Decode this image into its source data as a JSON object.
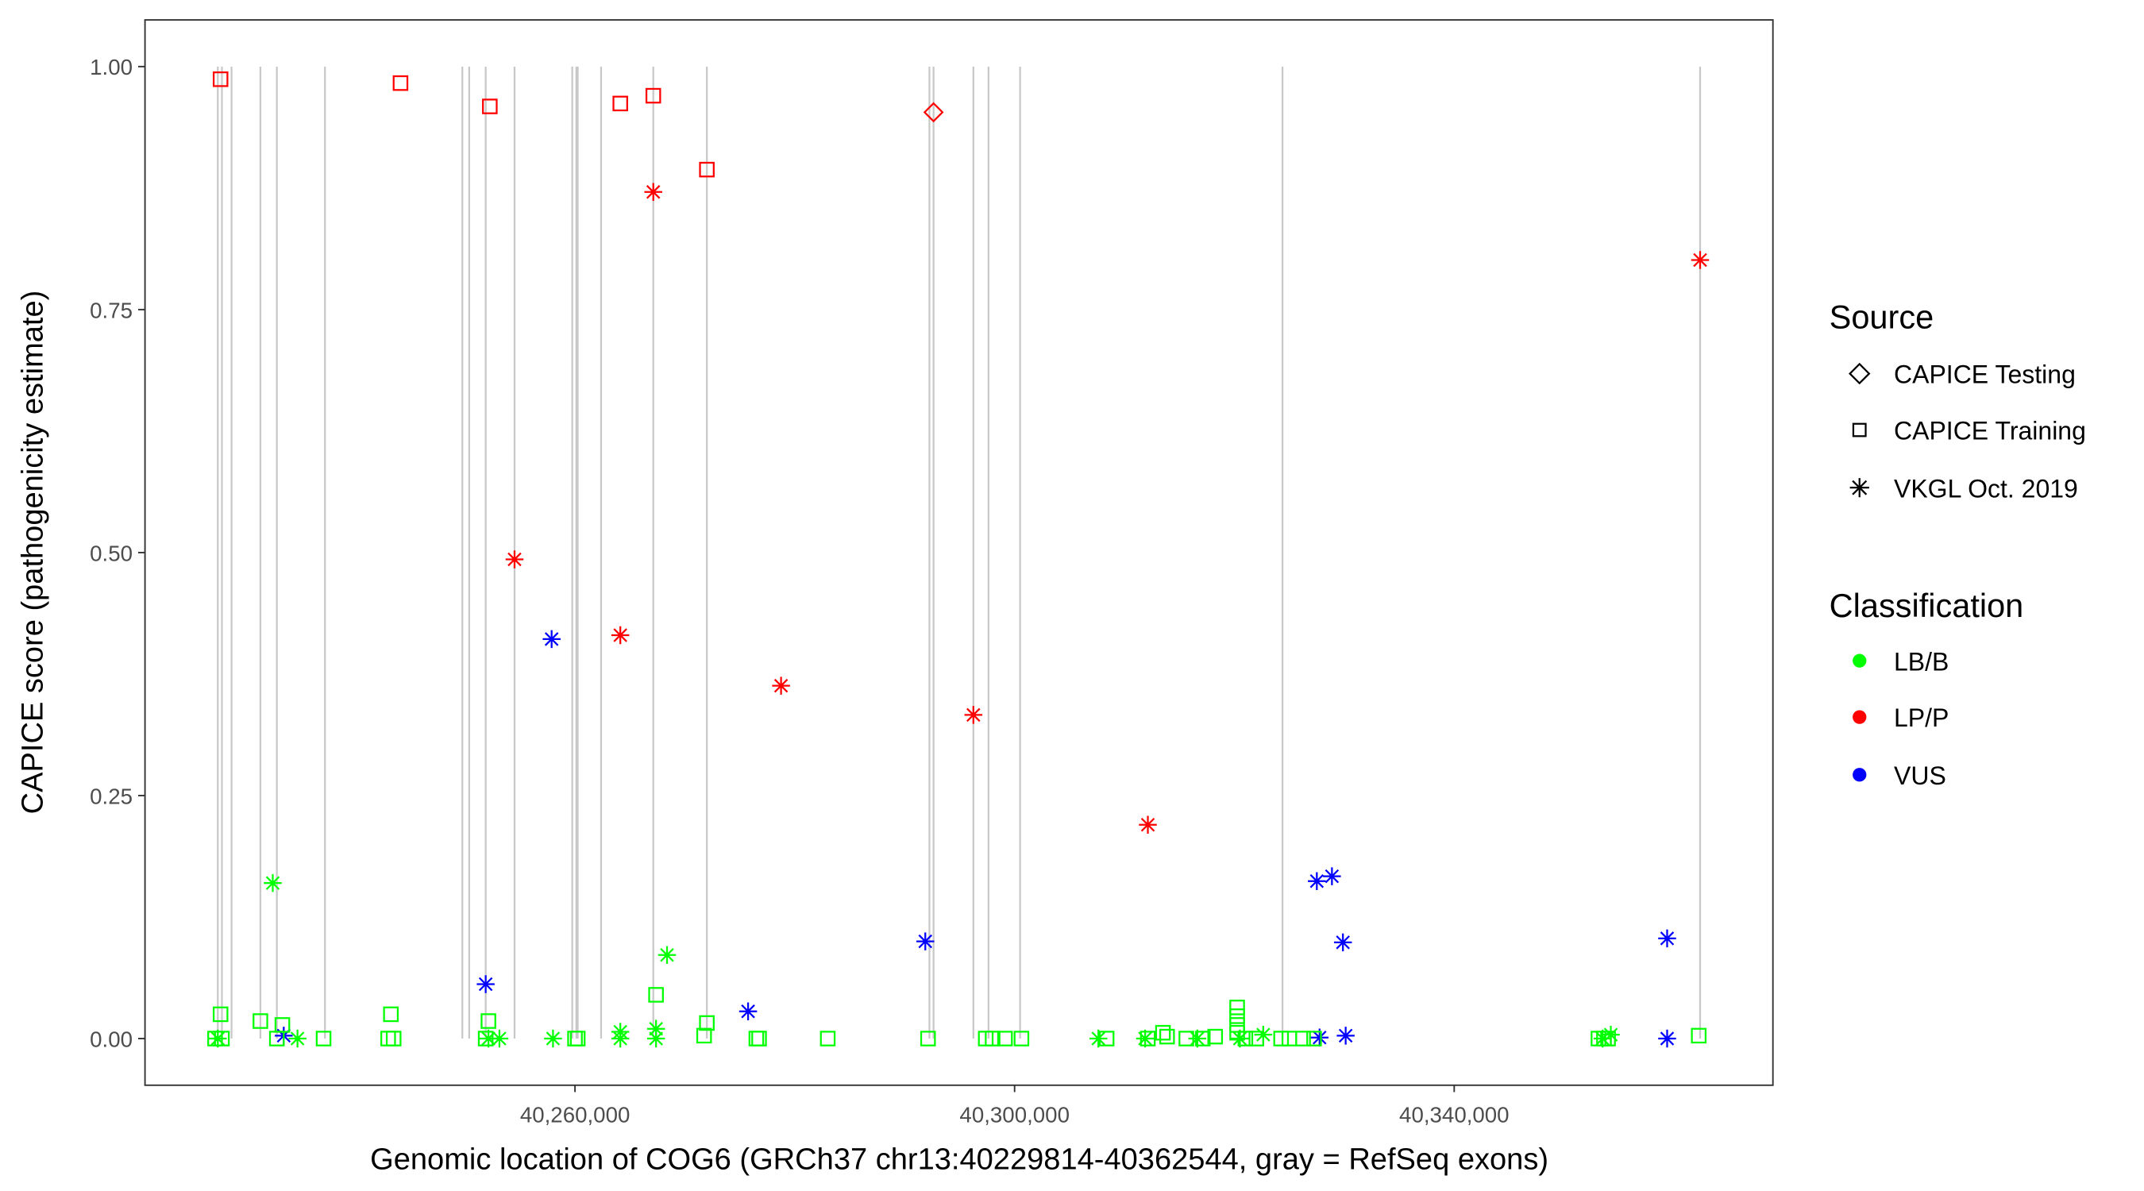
{
  "chart_data": {
    "type": "scatter",
    "xlabel": "Genomic location of COG6 (GRCh37 chr13:40229814-40362544, gray = RefSeq exons)",
    "ylabel": "CAPICE score (pathogenicity estimate)",
    "xlim": [
      40220875,
      40369000
    ],
    "ylim": [
      -0.048,
      1.048
    ],
    "x_ticks": [
      40260000,
      40300000,
      40340000
    ],
    "x_tick_labels": [
      "40,260,000",
      "40,300,000",
      "40,340,000"
    ],
    "y_ticks": [
      0,
      0.25,
      0.5,
      0.75,
      1.0
    ],
    "y_tick_labels": [
      "0.00",
      "0.25",
      "0.50",
      "0.75",
      "1.00"
    ],
    "grid": false,
    "exon_color": "#c8c8c8",
    "exons": [
      40227500,
      40227875,
      40228750,
      40231375,
      40232875,
      40237250,
      40249750,
      40250375,
      40251875,
      40254500,
      40259750,
      40260125,
      40260250,
      40262375,
      40267125,
      40272000,
      40292250,
      40292625,
      40296250,
      40297625,
      40300500,
      40324375,
      40362375
    ],
    "legend": {
      "placement": "right",
      "source_title": "Source",
      "source": [
        {
          "label": "CAPICE Testing",
          "shape": "diamond"
        },
        {
          "label": "CAPICE Training",
          "shape": "square"
        },
        {
          "label": "VKGL Oct. 2019",
          "shape": "asterisk"
        }
      ],
      "classification_title": "Classification",
      "classification": [
        {
          "label": "LB/B",
          "color": "#00ff00"
        },
        {
          "label": "LP/P",
          "color": "#ff0000"
        },
        {
          "label": "VUS",
          "color": "#0000ff"
        }
      ]
    },
    "series": [
      {
        "source": "CAPICE Training",
        "classification": "LP/P",
        "points": [
          [
            40227750,
            0.987
          ],
          [
            40244125,
            0.983
          ],
          [
            40252250,
            0.959
          ],
          [
            40264125,
            0.962
          ],
          [
            40267125,
            0.97
          ],
          [
            40272000,
            0.894
          ]
        ]
      },
      {
        "source": "CAPICE Testing",
        "classification": "LP/P",
        "points": [
          [
            40292625,
            0.953
          ]
        ]
      },
      {
        "source": "VKGL Oct. 2019",
        "classification": "LP/P",
        "points": [
          [
            40267125,
            0.871
          ],
          [
            40254500,
            0.493
          ],
          [
            40264125,
            0.415
          ],
          [
            40278750,
            0.363
          ],
          [
            40296250,
            0.333
          ],
          [
            40312125,
            0.22
          ],
          [
            40362375,
            0.801
          ]
        ]
      },
      {
        "source": "VKGL Oct. 2019",
        "classification": "VUS",
        "points": [
          [
            40257875,
            0.411
          ],
          [
            40251875,
            0.056
          ],
          [
            40275750,
            0.028
          ],
          [
            40291875,
            0.1
          ],
          [
            40327500,
            0.162
          ],
          [
            40328875,
            0.167
          ],
          [
            40329875,
            0.099
          ],
          [
            40359375,
            0.103
          ],
          [
            40233500,
            0.003
          ],
          [
            40327750,
            0.001
          ],
          [
            40330125,
            0.003
          ],
          [
            40359375,
            0.0
          ]
        ]
      },
      {
        "source": "VKGL Oct. 2019",
        "classification": "LB/B",
        "points": [
          [
            40232500,
            0.16
          ],
          [
            40268375,
            0.086
          ],
          [
            40264125,
            0.007
          ],
          [
            40267375,
            0.01
          ],
          [
            40227500,
            0.0
          ],
          [
            40234750,
            0.0
          ],
          [
            40252125,
            0.0
          ],
          [
            40253125,
            0.0
          ],
          [
            40258000,
            0.0
          ],
          [
            40264125,
            0.0
          ],
          [
            40267375,
            0.0
          ],
          [
            40307625,
            0.0
          ],
          [
            40311875,
            0.0
          ],
          [
            40316625,
            0.0
          ],
          [
            40320500,
            0.0
          ],
          [
            40322625,
            0.004
          ],
          [
            40354250,
            0.004
          ],
          [
            40353500,
            0.0
          ]
        ]
      },
      {
        "source": "CAPICE Training",
        "classification": "LB/B",
        "points": [
          [
            40227750,
            0.025
          ],
          [
            40231375,
            0.018
          ],
          [
            40233375,
            0.014
          ],
          [
            40243250,
            0.025
          ],
          [
            40252125,
            0.018
          ],
          [
            40267375,
            0.045
          ],
          [
            40272000,
            0.016
          ],
          [
            40271750,
            0.003
          ],
          [
            40320250,
            0.032
          ],
          [
            40320250,
            0.023
          ],
          [
            40320250,
            0.014
          ],
          [
            40320250,
            0.006
          ],
          [
            40313500,
            0.006
          ],
          [
            40362250,
            0.003
          ],
          [
            40227250,
            0.0
          ],
          [
            40227875,
            0.0
          ],
          [
            40232875,
            0.0
          ],
          [
            40237125,
            0.0
          ],
          [
            40243000,
            0.0
          ],
          [
            40243500,
            0.0
          ],
          [
            40251875,
            0.0
          ],
          [
            40260000,
            0.0
          ],
          [
            40260250,
            0.0
          ],
          [
            40276500,
            0.0
          ],
          [
            40276750,
            0.0
          ],
          [
            40283000,
            0.0
          ],
          [
            40292125,
            0.0
          ],
          [
            40297375,
            0.0
          ],
          [
            40298000,
            0.0
          ],
          [
            40299125,
            0.0
          ],
          [
            40300625,
            0.0
          ],
          [
            40308375,
            0.0
          ],
          [
            40312125,
            0.0
          ],
          [
            40313875,
            0.002
          ],
          [
            40315625,
            0.0
          ],
          [
            40317125,
            0.0
          ],
          [
            40318250,
            0.002
          ],
          [
            40321000,
            0.0
          ],
          [
            40322000,
            0.0
          ],
          [
            40324250,
            0.0
          ],
          [
            40325000,
            0.0
          ],
          [
            40326250,
            0.0
          ],
          [
            40327250,
            0.0
          ],
          [
            40353125,
            0.0
          ],
          [
            40353625,
            0.0
          ],
          [
            40354000,
            0.0
          ]
        ]
      }
    ]
  }
}
